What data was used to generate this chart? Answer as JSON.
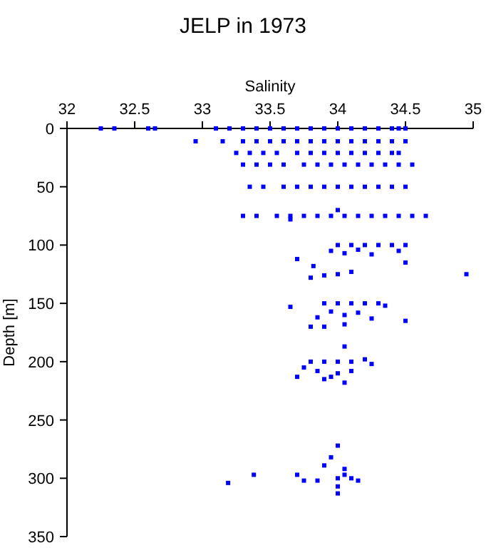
{
  "chart_data": {
    "type": "scatter",
    "title": "JELP in 1973",
    "xlabel": "Salinity",
    "ylabel": "Depth [m]",
    "xlim": [
      32,
      35
    ],
    "ylim": [
      350,
      0
    ],
    "xticks": [
      32,
      32.5,
      33,
      33.5,
      34,
      34.5,
      35
    ],
    "yticks": [
      0,
      50,
      100,
      150,
      200,
      250,
      300,
      350
    ],
    "grid": false,
    "marker": "square",
    "series": [
      {
        "color": "#0000ff",
        "x": [
          32.25,
          32.35,
          32.6,
          32.65,
          33.1,
          33.2,
          33.3,
          33.4,
          33.5,
          33.6,
          33.7,
          33.8,
          33.9,
          34.0,
          34.1,
          34.2,
          34.3,
          34.4,
          34.45,
          34.5,
          32.95,
          33.15,
          33.3,
          33.4,
          33.5,
          33.6,
          33.7,
          33.8,
          33.9,
          34.0,
          34.1,
          34.2,
          34.3,
          34.4,
          34.5,
          33.25,
          33.35,
          33.45,
          33.55,
          33.7,
          33.8,
          33.9,
          34.0,
          34.1,
          34.2,
          34.3,
          34.4,
          34.45,
          33.3,
          33.4,
          33.5,
          33.6,
          33.75,
          33.85,
          33.95,
          34.05,
          34.15,
          34.25,
          34.35,
          34.45,
          34.55,
          33.35,
          33.45,
          33.6,
          33.7,
          33.8,
          33.9,
          34.0,
          34.1,
          34.2,
          34.3,
          34.4,
          34.5,
          33.3,
          33.4,
          33.55,
          33.65,
          33.75,
          33.85,
          33.95,
          34.05,
          34.15,
          34.25,
          34.35,
          34.45,
          34.55,
          34.65,
          34.0,
          33.65,
          34.0,
          34.1,
          34.2,
          34.3,
          34.4,
          34.5,
          33.95,
          34.05,
          34.15,
          34.25,
          34.45,
          33.7,
          33.82,
          34.5,
          34.0,
          34.1,
          34.95,
          33.8,
          33.9,
          33.65,
          33.9,
          34.0,
          34.1,
          34.2,
          34.3,
          34.35,
          33.95,
          34.05,
          34.15,
          33.85,
          34.25,
          34.5,
          33.8,
          33.9,
          34.05,
          34.05,
          33.8,
          33.9,
          34.0,
          34.1,
          34.2,
          34.25,
          33.75,
          33.85,
          34.0,
          34.1,
          33.7,
          33.95,
          33.9,
          34.05,
          34.0,
          33.95,
          33.9,
          34.05,
          33.7,
          33.75,
          33.85,
          34.0,
          34.1,
          34.15,
          34.05,
          34.0,
          33.38,
          33.19,
          34.0
        ],
        "values": [
          0,
          0,
          0,
          0,
          0,
          0,
          0,
          0,
          0,
          0,
          0,
          0,
          0,
          0,
          0,
          0,
          0,
          0,
          0,
          0,
          11,
          11,
          11,
          11,
          11,
          11,
          11,
          11,
          11,
          11,
          11,
          11,
          11,
          11,
          11,
          21,
          21,
          21,
          21,
          21,
          21,
          21,
          21,
          21,
          21,
          21,
          21,
          21,
          31,
          31,
          31,
          31,
          31,
          31,
          31,
          31,
          31,
          31,
          31,
          31,
          31,
          50,
          50,
          50,
          50,
          50,
          50,
          50,
          50,
          50,
          50,
          50,
          50,
          75,
          75,
          75,
          75,
          75,
          75,
          75,
          75,
          75,
          75,
          75,
          75,
          75,
          75,
          70,
          78,
          100,
          100,
          100,
          100,
          100,
          100,
          105,
          107,
          104,
          108,
          105,
          112,
          118,
          115,
          125,
          123,
          125,
          128,
          126,
          153,
          150,
          150,
          150,
          150,
          150,
          152,
          157,
          160,
          158,
          162,
          163,
          165,
          170,
          170,
          168,
          187,
          200,
          200,
          200,
          200,
          198,
          202,
          205,
          208,
          210,
          208,
          213,
          213,
          215,
          218,
          272,
          282,
          289,
          292,
          297,
          302,
          302,
          300,
          300,
          302,
          297,
          307,
          297,
          304,
          313
        ]
      }
    ]
  }
}
